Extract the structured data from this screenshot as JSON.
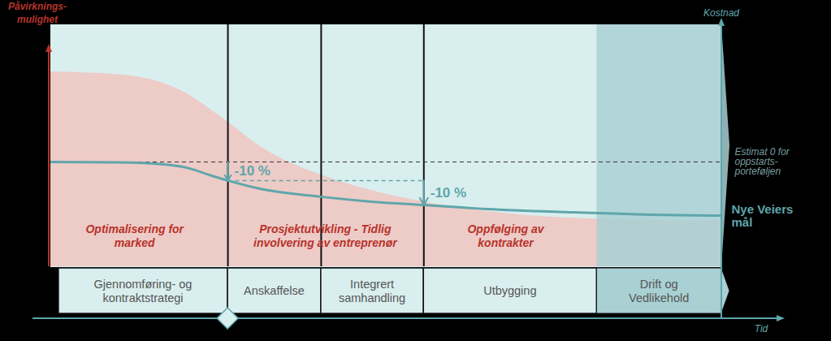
{
  "chart_data": {
    "type": "line",
    "xlabel": "Tid",
    "ylabel": "Påvirknings-\nmulighet",
    "y2label": "Kostnad",
    "xlim": [
      0,
      100
    ],
    "ylim": [
      0,
      100
    ],
    "y2lim": [
      0,
      100
    ],
    "xticks": [],
    "yticks": [],
    "y2ticks": [],
    "tick_labels": false,
    "grid": false,
    "series": [
      {
        "name": "Nye Veiers mål",
        "color": "#5fa6ab",
        "axis": "y2",
        "x": [
          0,
          9.9,
          16.9,
          20.3,
          24.0,
          26.4,
          31.2,
          40.3,
          48.2,
          55.6,
          65.1,
          77.2,
          89.3,
          100
        ],
        "values": [
          43.3,
          43.1,
          42.3,
          40.9,
          37.6,
          35.6,
          32.2,
          28.9,
          26.8,
          25.5,
          23.8,
          22.5,
          21.5,
          21.1
        ]
      }
    ],
    "influence": {
      "color": "#f0c4c0",
      "x": [
        0,
        10.7,
        19.1,
        26.4,
        31.2,
        40.3,
        48.2,
        55.6,
        65.1,
        77.2,
        100
      ],
      "values": [
        80.5,
        79.2,
        73.2,
        59.7,
        49.7,
        37.9,
        31.2,
        26.8,
        22.8,
        20.1,
        18.8
      ]
    },
    "reference_line": {
      "value": 43.3,
      "label": "Estimat 0 for\noppstarts-\nporteføljen",
      "line_style": "dashed",
      "axis": "y2"
    },
    "reductions": [
      {
        "x": 26.4,
        "from": 43.3,
        "to": 35.6,
        "label": "-10 %"
      },
      {
        "x": 55.6,
        "from": 35.6,
        "to": 25.5,
        "label": "-10 %"
      }
    ],
    "focus_areas": [
      {
        "label": "Optimalisering for\nmarked",
        "x": 12.5,
        "y": 12.8
      },
      {
        "label": "Prosjektutvikling - Tidlig\ninvolvering av entreprenør",
        "x": 40.9,
        "y": 12.8
      },
      {
        "label": "Oppfølging av\nkontrakter",
        "x": 67.8,
        "y": 12.8
      }
    ],
    "stages": [
      {
        "label": "Gjennomføring- og\nkontraktstrategi",
        "start": 1.2,
        "end": 26.4
      },
      {
        "label": "Anskaffelse",
        "start": 26.4,
        "end": 40.3
      },
      {
        "label": "Integrert\nsamhandling",
        "start": 40.3,
        "end": 55.6
      },
      {
        "label": "Utbygging",
        "start": 55.6,
        "end": 81.4
      },
      {
        "label": "Drift og\nVedlikehold",
        "start": 81.4,
        "end": 100
      }
    ]
  }
}
